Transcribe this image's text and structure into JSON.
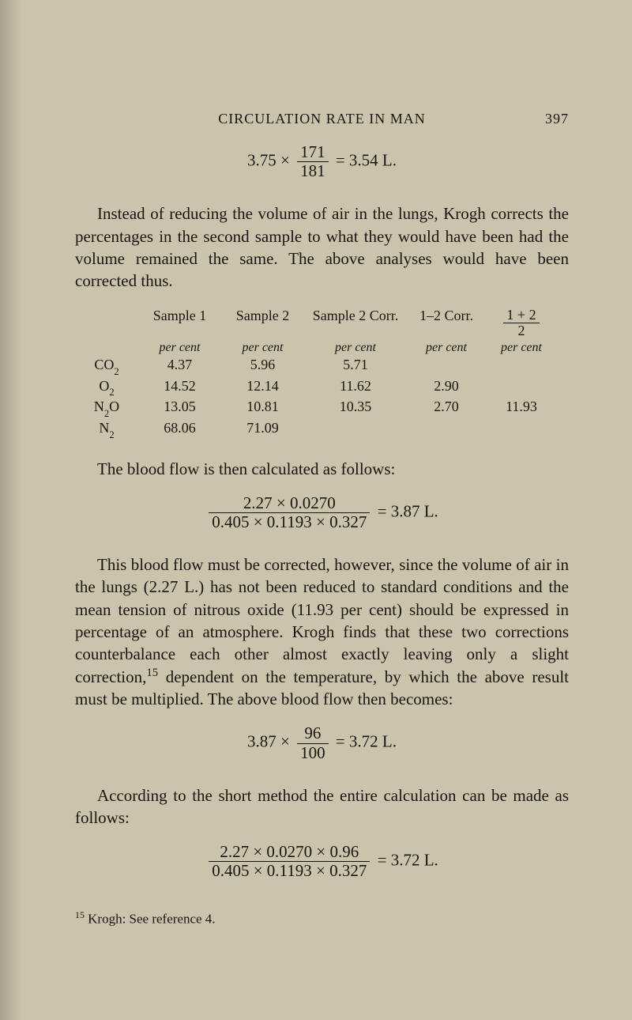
{
  "header": {
    "running_title": "CIRCULATION RATE IN MAN",
    "page_number": "397"
  },
  "eq1": {
    "lhs_a": "3.75 ×",
    "frac_num": "171",
    "frac_den": "181",
    "rhs": "= 3.54 L."
  },
  "para1": "Instead of reducing the volume of air in the lungs, Krogh corrects the percentages in the second sample to what they would have been had the volume remained the same. The above analyses would have been corrected thus.",
  "table": {
    "head": [
      "",
      "Sample 1",
      "Sample 2",
      "Sample 2 Corr.",
      "1–2 Corr."
    ],
    "head5_num": "1 + 2",
    "head5_den": "2",
    "unit": "per cent",
    "rows": [
      {
        "label_pre": "CO",
        "label_sub": "2",
        "c1": "4.37",
        "c2": "5.96",
        "c3": "5.71",
        "c4": "",
        "c5": ""
      },
      {
        "label_pre": "O",
        "label_sub": "2",
        "c1": "14.52",
        "c2": "12.14",
        "c3": "11.62",
        "c4": "2.90",
        "c5": ""
      },
      {
        "label_pre": "N",
        "label_sub": "2",
        "label_post": "O",
        "c1": "13.05",
        "c2": "10.81",
        "c3": "10.35",
        "c4": "2.70",
        "c5": "11.93"
      },
      {
        "label_pre": "N",
        "label_sub": "2",
        "c1": "68.06",
        "c2": "71.09",
        "c3": "",
        "c4": "",
        "c5": ""
      }
    ]
  },
  "para2": "The blood flow is then calculated as follows:",
  "eq2": {
    "num": "2.27 × 0.0270",
    "den": "0.405 × 0.1193 × 0.327",
    "rhs": "= 3.87 L."
  },
  "para3_a": "This blood flow must be corrected, however, since the volume of air in the lungs (2.27 L.) has not been reduced to standard conditions and the mean tension of nitrous oxide (11.93 per cent) should be expressed in percentage of an atmosphere. Krogh finds that these two corrections counterbalance each other almost exactly leaving only a slight correction,",
  "para3_sup": "15",
  "para3_b": " dependent on the tem­perature, by which the above result must be multiplied. The above blood flow then becomes:",
  "eq3": {
    "lhs": "3.87 ×",
    "num": "96",
    "den": "100",
    "rhs": "= 3.72 L."
  },
  "para4": "According to the short method the entire calculation can be made as follows:",
  "eq4": {
    "num": "2.27 × 0.0270 × 0.96",
    "den": "0.405 × 0.1193 × 0.327",
    "rhs": "= 3.72 L."
  },
  "footnote": {
    "sup": "15",
    "text": " Krogh: See reference 4."
  }
}
